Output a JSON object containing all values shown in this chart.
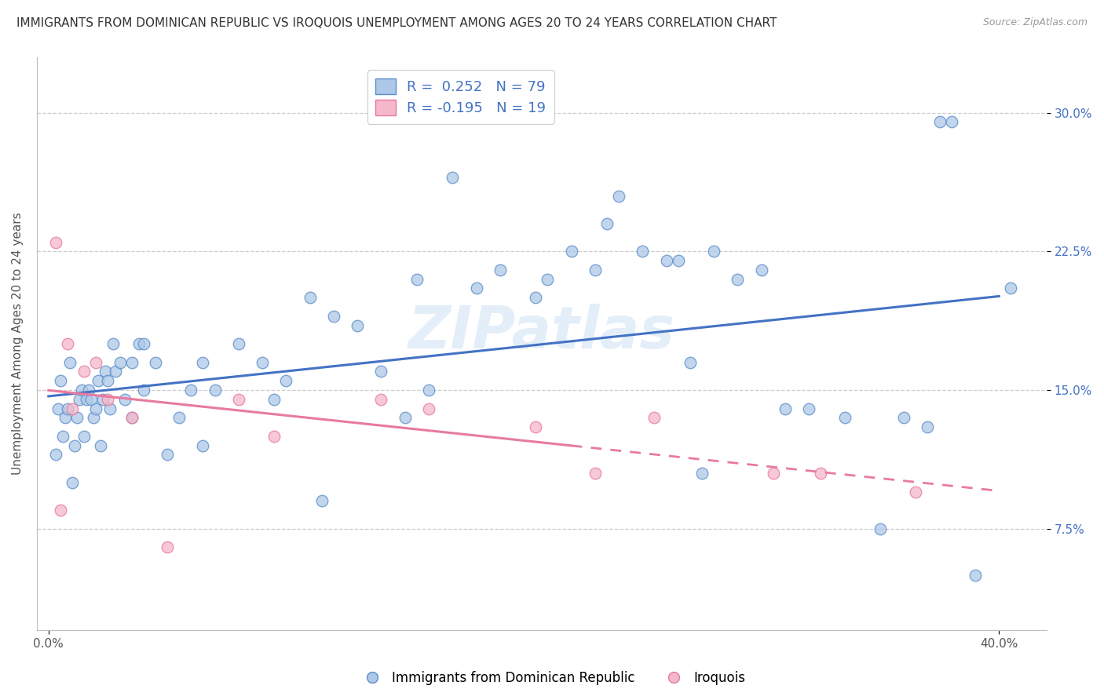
{
  "title": "IMMIGRANTS FROM DOMINICAN REPUBLIC VS IROQUOIS UNEMPLOYMENT AMONG AGES 20 TO 24 YEARS CORRELATION CHART",
  "source": "Source: ZipAtlas.com",
  "ylabel": "Unemployment Among Ages 20 to 24 years",
  "ytick_vals": [
    7.5,
    15.0,
    22.5,
    30.0
  ],
  "ymin": 2.0,
  "ymax": 33.0,
  "xmin": -0.5,
  "xmax": 42.0,
  "blue_R": 0.252,
  "blue_N": 79,
  "pink_R": -0.195,
  "pink_N": 19,
  "legend_label1": "Immigrants from Dominican Republic",
  "legend_label2": "Iroquois",
  "blue_color": "#adc8e8",
  "pink_color": "#f5b8cb",
  "blue_edge_color": "#5b8dc8",
  "pink_edge_color": "#e8789a",
  "blue_line_color": "#4472c4",
  "pink_line_color": "#e87aa0",
  "watermark": "ZIPatlas",
  "blue_scatter_x": [
    0.3,
    0.4,
    0.5,
    0.6,
    0.7,
    0.8,
    0.9,
    1.0,
    1.1,
    1.2,
    1.3,
    1.4,
    1.5,
    1.6,
    1.7,
    1.8,
    1.9,
    2.0,
    2.1,
    2.2,
    2.3,
    2.4,
    2.5,
    2.6,
    2.7,
    2.8,
    3.0,
    3.2,
    3.5,
    3.8,
    4.0,
    4.5,
    5.0,
    5.5,
    6.0,
    6.5,
    7.0,
    8.0,
    9.0,
    9.5,
    10.0,
    11.0,
    12.0,
    13.0,
    14.0,
    15.0,
    16.0,
    17.0,
    18.0,
    19.0,
    20.5,
    21.0,
    22.0,
    23.0,
    24.0,
    25.0,
    26.0,
    27.0,
    28.0,
    29.0,
    30.0,
    31.0,
    32.0,
    33.5,
    35.0,
    36.0,
    37.0,
    38.0,
    39.0,
    4.0,
    15.5,
    23.5,
    26.5,
    37.5,
    40.5,
    27.5,
    11.5,
    6.5,
    3.5
  ],
  "blue_scatter_y": [
    11.5,
    14.0,
    15.5,
    12.5,
    13.5,
    14.0,
    16.5,
    10.0,
    12.0,
    13.5,
    14.5,
    15.0,
    12.5,
    14.5,
    15.0,
    14.5,
    13.5,
    14.0,
    15.5,
    12.0,
    14.5,
    16.0,
    15.5,
    14.0,
    17.5,
    16.0,
    16.5,
    14.5,
    16.5,
    17.5,
    15.0,
    16.5,
    11.5,
    13.5,
    15.0,
    16.5,
    15.0,
    17.5,
    16.5,
    14.5,
    15.5,
    20.0,
    19.0,
    18.5,
    16.0,
    13.5,
    15.0,
    26.5,
    20.5,
    21.5,
    20.0,
    21.0,
    22.5,
    21.5,
    25.5,
    22.5,
    22.0,
    16.5,
    22.5,
    21.0,
    21.5,
    14.0,
    14.0,
    13.5,
    7.5,
    13.5,
    13.0,
    29.5,
    5.0,
    17.5,
    21.0,
    24.0,
    22.0,
    29.5,
    20.5,
    10.5,
    9.0,
    12.0,
    13.5
  ],
  "pink_scatter_x": [
    0.3,
    0.5,
    0.8,
    1.0,
    1.5,
    2.0,
    3.5,
    5.0,
    8.0,
    14.0,
    20.5,
    23.0,
    25.5,
    30.5,
    32.5,
    36.5,
    2.5,
    9.5,
    16.0
  ],
  "pink_scatter_y": [
    23.0,
    8.5,
    17.5,
    14.0,
    16.0,
    16.5,
    13.5,
    6.5,
    14.5,
    14.5,
    13.0,
    10.5,
    13.5,
    10.5,
    10.5,
    9.5,
    14.5,
    12.5,
    14.0
  ]
}
